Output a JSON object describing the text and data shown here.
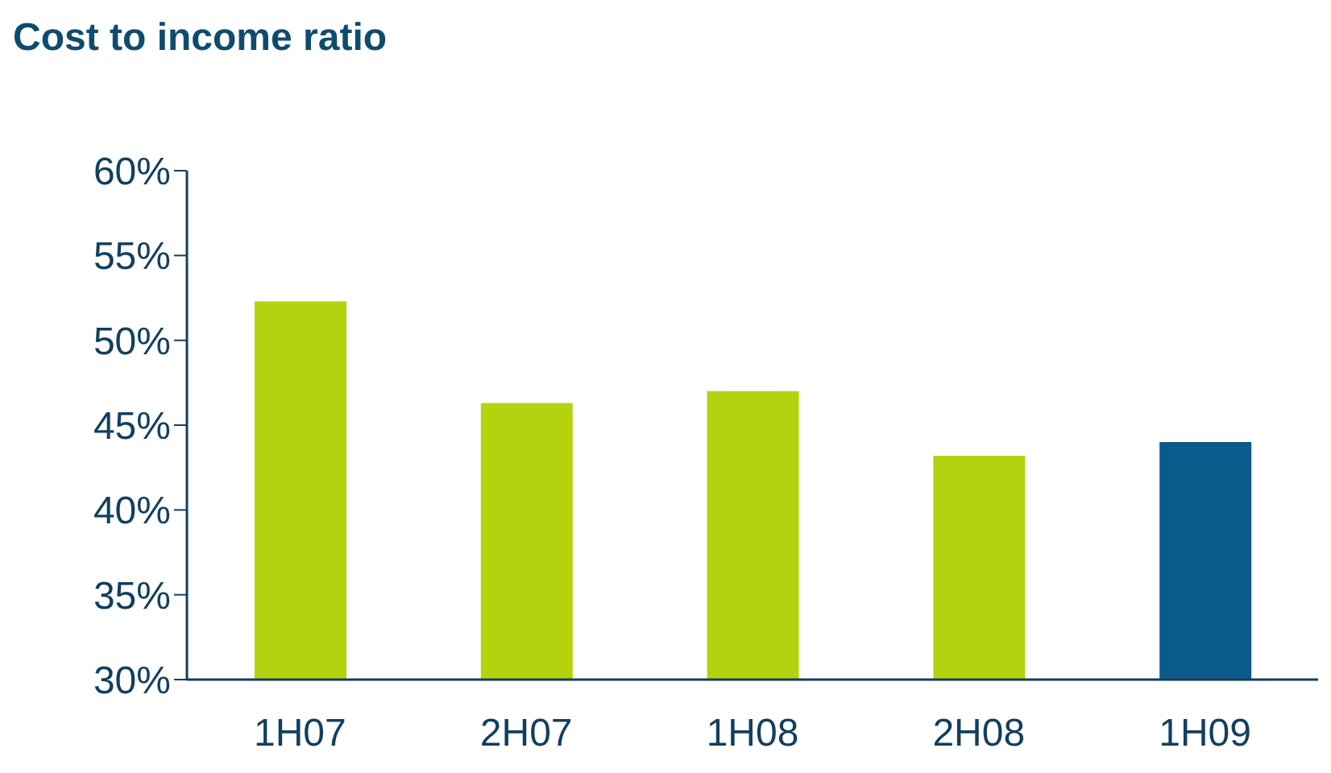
{
  "chart_data": {
    "type": "bar",
    "title": "Cost to income ratio",
    "categories": [
      "1H07",
      "2H07",
      "1H08",
      "2H08",
      "1H09"
    ],
    "values": [
      52.3,
      46.3,
      47.0,
      43.2,
      44.0
    ],
    "colors": [
      "#b5d20f",
      "#b5d20f",
      "#b5d20f",
      "#b5d20f",
      "#0a5a8c"
    ],
    "ylim": [
      30,
      60
    ],
    "yticks": [
      {
        "value": 30,
        "label": "30%"
      },
      {
        "value": 35,
        "label": "35%"
      },
      {
        "value": 40,
        "label": "40%"
      },
      {
        "value": 45,
        "label": "45%"
      },
      {
        "value": 50,
        "label": "50%"
      },
      {
        "value": 55,
        "label": "55%"
      },
      {
        "value": 60,
        "label": "60%"
      }
    ],
    "grid": false,
    "legend": false
  }
}
